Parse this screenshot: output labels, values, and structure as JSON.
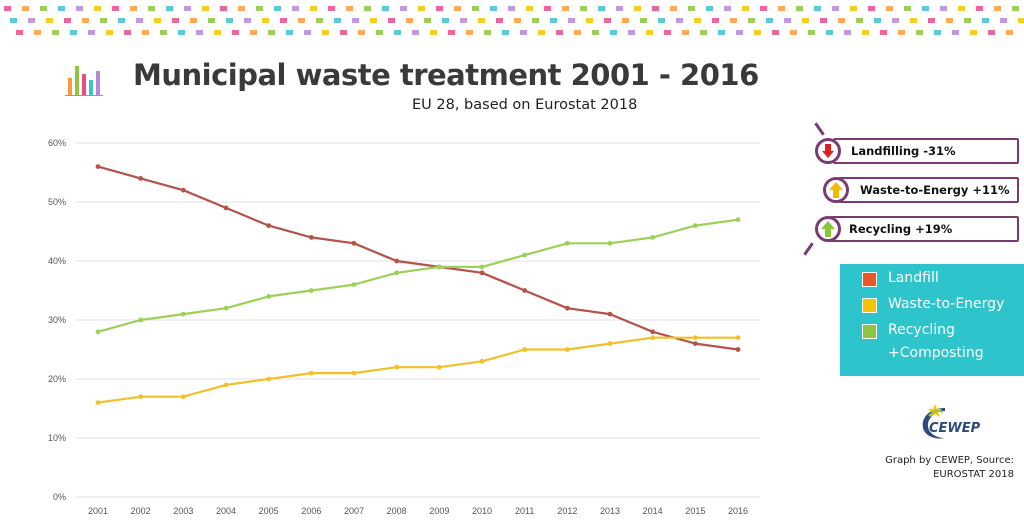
{
  "header": {
    "title": "Municipal waste treatment 2001 - 2016",
    "subtitle": "EU 28, based on Eurostat 2018"
  },
  "callouts": [
    {
      "label": "Landfilling -31%",
      "direction": "down",
      "color": "#e02020"
    },
    {
      "label": "Waste-to-Energy +11%",
      "direction": "up",
      "color": "#f5b800"
    },
    {
      "label": "Recycling +19%",
      "direction": "up",
      "color": "#8cc63f"
    }
  ],
  "legend": {
    "items": [
      {
        "label": "Landfill",
        "color": "#e8562a"
      },
      {
        "label": "Waste-to-Energy",
        "color": "#f5c400"
      },
      {
        "label": "Recycling",
        "color": "#8cc63f"
      },
      {
        "label": "+Composting"
      }
    ]
  },
  "logo": {
    "text": "CEWEP"
  },
  "credit": {
    "line1": "Graph by CEWEP, Source:",
    "line2": "EUROSTAT 2018"
  },
  "chart_data": {
    "type": "line",
    "x": [
      "2001",
      "2002",
      "2003",
      "2004",
      "2005",
      "2006",
      "2007",
      "2008",
      "2009",
      "2010",
      "2011",
      "2012",
      "2013",
      "2014",
      "2015",
      "2016"
    ],
    "ylim": [
      0,
      60
    ],
    "yticks": [
      0,
      10,
      20,
      30,
      40,
      50,
      60
    ],
    "ytick_format": "%",
    "grid": true,
    "series": [
      {
        "key": "landfill",
        "color": "#b5524a",
        "values": [
          56,
          54,
          52,
          49,
          46,
          44,
          43,
          40,
          39,
          38,
          35,
          32,
          31,
          28,
          26,
          25
        ]
      },
      {
        "key": "wte",
        "color": "#f2c02a",
        "values": [
          16,
          17,
          17,
          19,
          20,
          21,
          21,
          22,
          22,
          23,
          25,
          25,
          26,
          27,
          27,
          27
        ]
      },
      {
        "key": "recycling",
        "color": "#9bd157",
        "values": [
          28,
          30,
          31,
          32,
          34,
          35,
          36,
          38,
          39,
          39,
          41,
          43,
          43,
          44,
          46,
          47
        ]
      }
    ]
  }
}
